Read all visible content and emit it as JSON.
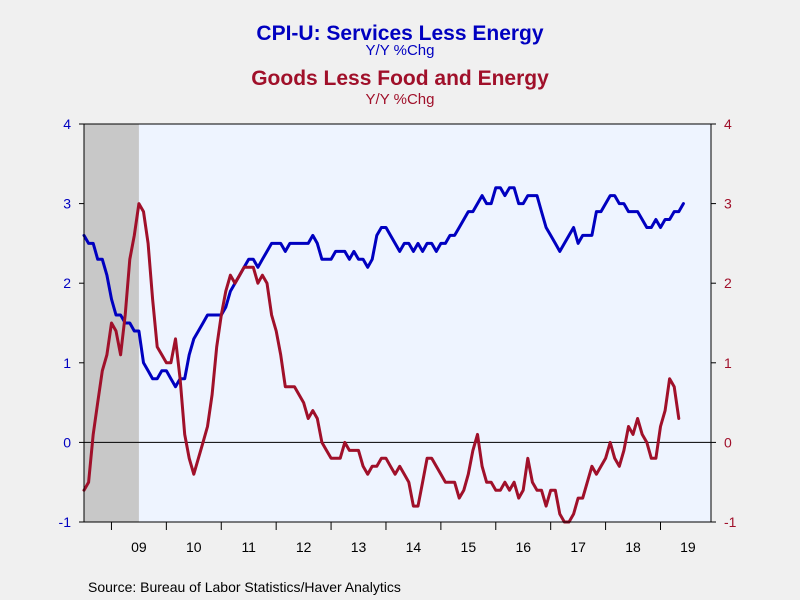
{
  "chart_data": {
    "type": "line",
    "titles": [
      {
        "text": "CPI-U: Services Less Energy",
        "color": "#0000c0"
      },
      {
        "text": "Y/Y %Chg",
        "color": "#0000c0"
      },
      {
        "text": "Goods Less Food and Energy",
        "color": "#a0102a"
      },
      {
        "text": "Y/Y %Chg",
        "color": "#a0102a"
      }
    ],
    "ylim": [
      -1,
      4
    ],
    "y_ticks": [
      -1,
      0,
      1,
      2,
      3,
      4
    ],
    "y_tick_labels": [
      "-1",
      "0",
      "1",
      "2",
      "3",
      "4"
    ],
    "xlim": [
      2008.5,
      2019.92
    ],
    "x_ticks": [
      {
        "label": "09",
        "year": 2009
      },
      {
        "label": "10",
        "year": 2010
      },
      {
        "label": "11",
        "year": 2011
      },
      {
        "label": "12",
        "year": 2012
      },
      {
        "label": "13",
        "year": 2013
      },
      {
        "label": "14",
        "year": 2014
      },
      {
        "label": "15",
        "year": 2015
      },
      {
        "label": "16",
        "year": 2016
      },
      {
        "label": "17",
        "year": 2017
      },
      {
        "label": "18",
        "year": 2018
      },
      {
        "label": "19",
        "year": 2019
      }
    ],
    "recession": {
      "start": "2008-07",
      "end": "2009-06"
    },
    "zero_line": true,
    "grid": false,
    "series": [
      {
        "axis": "left",
        "color": "#0000c0",
        "points": [
          [
            "2008-07",
            2.6
          ],
          [
            "2008-08",
            2.5
          ],
          [
            "2008-09",
            2.5
          ],
          [
            "2008-10",
            2.3
          ],
          [
            "2008-11",
            2.3
          ],
          [
            "2008-12",
            2.1
          ],
          [
            "2009-01",
            1.8
          ],
          [
            "2009-02",
            1.6
          ],
          [
            "2009-03",
            1.6
          ],
          [
            "2009-04",
            1.5
          ],
          [
            "2009-05",
            1.5
          ],
          [
            "2009-06",
            1.4
          ],
          [
            "2009-07",
            1.4
          ],
          [
            "2009-08",
            1.0
          ],
          [
            "2009-09",
            0.9
          ],
          [
            "2009-10",
            0.8
          ],
          [
            "2009-11",
            0.8
          ],
          [
            "2009-12",
            0.9
          ],
          [
            "2010-01",
            0.9
          ],
          [
            "2010-02",
            0.8
          ],
          [
            "2010-03",
            0.7
          ],
          [
            "2010-04",
            0.8
          ],
          [
            "2010-05",
            0.8
          ],
          [
            "2010-06",
            1.1
          ],
          [
            "2010-07",
            1.3
          ],
          [
            "2010-08",
            1.4
          ],
          [
            "2010-09",
            1.5
          ],
          [
            "2010-10",
            1.6
          ],
          [
            "2010-11",
            1.6
          ],
          [
            "2010-12",
            1.6
          ],
          [
            "2011-01",
            1.6
          ],
          [
            "2011-02",
            1.7
          ],
          [
            "2011-03",
            1.9
          ],
          [
            "2011-04",
            2.0
          ],
          [
            "2011-05",
            2.1
          ],
          [
            "2011-06",
            2.2
          ],
          [
            "2011-07",
            2.3
          ],
          [
            "2011-08",
            2.3
          ],
          [
            "2011-09",
            2.2
          ],
          [
            "2011-10",
            2.3
          ],
          [
            "2011-11",
            2.4
          ],
          [
            "2011-12",
            2.5
          ],
          [
            "2012-01",
            2.5
          ],
          [
            "2012-02",
            2.5
          ],
          [
            "2012-03",
            2.4
          ],
          [
            "2012-04",
            2.5
          ],
          [
            "2012-05",
            2.5
          ],
          [
            "2012-06",
            2.5
          ],
          [
            "2012-07",
            2.5
          ],
          [
            "2012-08",
            2.5
          ],
          [
            "2012-09",
            2.6
          ],
          [
            "2012-10",
            2.5
          ],
          [
            "2012-11",
            2.3
          ],
          [
            "2012-12",
            2.3
          ],
          [
            "2013-01",
            2.3
          ],
          [
            "2013-02",
            2.4
          ],
          [
            "2013-03",
            2.4
          ],
          [
            "2013-04",
            2.4
          ],
          [
            "2013-05",
            2.3
          ],
          [
            "2013-06",
            2.4
          ],
          [
            "2013-07",
            2.3
          ],
          [
            "2013-08",
            2.3
          ],
          [
            "2013-09",
            2.2
          ],
          [
            "2013-10",
            2.3
          ],
          [
            "2013-11",
            2.6
          ],
          [
            "2013-12",
            2.7
          ],
          [
            "2014-01",
            2.7
          ],
          [
            "2014-02",
            2.6
          ],
          [
            "2014-03",
            2.5
          ],
          [
            "2014-04",
            2.4
          ],
          [
            "2014-05",
            2.5
          ],
          [
            "2014-06",
            2.5
          ],
          [
            "2014-07",
            2.4
          ],
          [
            "2014-08",
            2.5
          ],
          [
            "2014-09",
            2.4
          ],
          [
            "2014-10",
            2.5
          ],
          [
            "2014-11",
            2.5
          ],
          [
            "2014-12",
            2.4
          ],
          [
            "2015-01",
            2.5
          ],
          [
            "2015-02",
            2.5
          ],
          [
            "2015-03",
            2.6
          ],
          [
            "2015-04",
            2.6
          ],
          [
            "2015-05",
            2.7
          ],
          [
            "2015-06",
            2.8
          ],
          [
            "2015-07",
            2.9
          ],
          [
            "2015-08",
            2.9
          ],
          [
            "2015-09",
            3.0
          ],
          [
            "2015-10",
            3.1
          ],
          [
            "2015-11",
            3.0
          ],
          [
            "2015-12",
            3.0
          ],
          [
            "2016-01",
            3.2
          ],
          [
            "2016-02",
            3.2
          ],
          [
            "2016-03",
            3.1
          ],
          [
            "2016-04",
            3.2
          ],
          [
            "2016-05",
            3.2
          ],
          [
            "2016-06",
            3.0
          ],
          [
            "2016-07",
            3.0
          ],
          [
            "2016-08",
            3.1
          ],
          [
            "2016-09",
            3.1
          ],
          [
            "2016-10",
            3.1
          ],
          [
            "2016-11",
            2.9
          ],
          [
            "2016-12",
            2.7
          ],
          [
            "2017-01",
            2.6
          ],
          [
            "2017-02",
            2.5
          ],
          [
            "2017-03",
            2.4
          ],
          [
            "2017-04",
            2.5
          ],
          [
            "2017-05",
            2.6
          ],
          [
            "2017-06",
            2.7
          ],
          [
            "2017-07",
            2.5
          ],
          [
            "2017-08",
            2.6
          ],
          [
            "2017-09",
            2.6
          ],
          [
            "2017-10",
            2.6
          ],
          [
            "2017-11",
            2.9
          ],
          [
            "2017-12",
            2.9
          ],
          [
            "2018-01",
            3.0
          ],
          [
            "2018-02",
            3.1
          ],
          [
            "2018-03",
            3.1
          ],
          [
            "2018-04",
            3.0
          ],
          [
            "2018-05",
            3.0
          ],
          [
            "2018-06",
            2.9
          ],
          [
            "2018-07",
            2.9
          ],
          [
            "2018-08",
            2.9
          ],
          [
            "2018-09",
            2.8
          ],
          [
            "2018-10",
            2.7
          ],
          [
            "2018-11",
            2.7
          ],
          [
            "2018-12",
            2.8
          ],
          [
            "2019-01",
            2.7
          ],
          [
            "2019-02",
            2.8
          ],
          [
            "2019-03",
            2.8
          ],
          [
            "2019-04",
            2.9
          ],
          [
            "2019-05",
            2.9
          ],
          [
            "2019-06",
            3.0
          ]
        ]
      },
      {
        "axis": "right",
        "color": "#a0102a",
        "points": [
          [
            "2008-07",
            -0.6
          ],
          [
            "2008-08",
            -0.5
          ],
          [
            "2008-09",
            0.1
          ],
          [
            "2008-10",
            0.5
          ],
          [
            "2008-11",
            0.9
          ],
          [
            "2008-12",
            1.1
          ],
          [
            "2009-01",
            1.5
          ],
          [
            "2009-02",
            1.4
          ],
          [
            "2009-03",
            1.1
          ],
          [
            "2009-04",
            1.6
          ],
          [
            "2009-05",
            2.3
          ],
          [
            "2009-06",
            2.6
          ],
          [
            "2009-07",
            3.0
          ],
          [
            "2009-08",
            2.9
          ],
          [
            "2009-09",
            2.5
          ],
          [
            "2009-10",
            1.8
          ],
          [
            "2009-11",
            1.2
          ],
          [
            "2009-12",
            1.1
          ],
          [
            "2010-01",
            1.0
          ],
          [
            "2010-02",
            1.0
          ],
          [
            "2010-03",
            1.3
          ],
          [
            "2010-04",
            0.8
          ],
          [
            "2010-05",
            0.1
          ],
          [
            "2010-06",
            -0.2
          ],
          [
            "2010-07",
            -0.4
          ],
          [
            "2010-08",
            -0.2
          ],
          [
            "2010-09",
            0.0
          ],
          [
            "2010-10",
            0.2
          ],
          [
            "2010-11",
            0.6
          ],
          [
            "2010-12",
            1.2
          ],
          [
            "2011-01",
            1.6
          ],
          [
            "2011-02",
            1.9
          ],
          [
            "2011-03",
            2.1
          ],
          [
            "2011-04",
            2.0
          ],
          [
            "2011-05",
            2.1
          ],
          [
            "2011-06",
            2.2
          ],
          [
            "2011-07",
            2.2
          ],
          [
            "2011-08",
            2.2
          ],
          [
            "2011-09",
            2.0
          ],
          [
            "2011-10",
            2.1
          ],
          [
            "2011-11",
            2.0
          ],
          [
            "2011-12",
            1.6
          ],
          [
            "2012-01",
            1.4
          ],
          [
            "2012-02",
            1.1
          ],
          [
            "2012-03",
            0.7
          ],
          [
            "2012-04",
            0.7
          ],
          [
            "2012-05",
            0.7
          ],
          [
            "2012-06",
            0.6
          ],
          [
            "2012-07",
            0.5
          ],
          [
            "2012-08",
            0.3
          ],
          [
            "2012-09",
            0.4
          ],
          [
            "2012-10",
            0.3
          ],
          [
            "2012-11",
            0.0
          ],
          [
            "2012-12",
            -0.1
          ],
          [
            "2013-01",
            -0.2
          ],
          [
            "2013-02",
            -0.2
          ],
          [
            "2013-03",
            -0.2
          ],
          [
            "2013-04",
            0.0
          ],
          [
            "2013-05",
            -0.1
          ],
          [
            "2013-06",
            -0.1
          ],
          [
            "2013-07",
            -0.1
          ],
          [
            "2013-08",
            -0.3
          ],
          [
            "2013-09",
            -0.4
          ],
          [
            "2013-10",
            -0.3
          ],
          [
            "2013-11",
            -0.3
          ],
          [
            "2013-12",
            -0.2
          ],
          [
            "2014-01",
            -0.2
          ],
          [
            "2014-02",
            -0.3
          ],
          [
            "2014-03",
            -0.4
          ],
          [
            "2014-04",
            -0.3
          ],
          [
            "2014-05",
            -0.4
          ],
          [
            "2014-06",
            -0.5
          ],
          [
            "2014-07",
            -0.8
          ],
          [
            "2014-08",
            -0.8
          ],
          [
            "2014-09",
            -0.5
          ],
          [
            "2014-10",
            -0.2
          ],
          [
            "2014-11",
            -0.2
          ],
          [
            "2014-12",
            -0.3
          ],
          [
            "2015-01",
            -0.4
          ],
          [
            "2015-02",
            -0.5
          ],
          [
            "2015-03",
            -0.5
          ],
          [
            "2015-04",
            -0.5
          ],
          [
            "2015-05",
            -0.7
          ],
          [
            "2015-06",
            -0.6
          ],
          [
            "2015-07",
            -0.4
          ],
          [
            "2015-08",
            -0.1
          ],
          [
            "2015-09",
            0.1
          ],
          [
            "2015-10",
            -0.3
          ],
          [
            "2015-11",
            -0.5
          ],
          [
            "2015-12",
            -0.5
          ],
          [
            "2016-01",
            -0.6
          ],
          [
            "2016-02",
            -0.6
          ],
          [
            "2016-03",
            -0.5
          ],
          [
            "2016-04",
            -0.6
          ],
          [
            "2016-05",
            -0.5
          ],
          [
            "2016-06",
            -0.7
          ],
          [
            "2016-07",
            -0.6
          ],
          [
            "2016-08",
            -0.2
          ],
          [
            "2016-09",
            -0.5
          ],
          [
            "2016-10",
            -0.6
          ],
          [
            "2016-11",
            -0.6
          ],
          [
            "2016-12",
            -0.8
          ],
          [
            "2017-01",
            -0.6
          ],
          [
            "2017-02",
            -0.6
          ],
          [
            "2017-03",
            -0.9
          ],
          [
            "2017-04",
            -1.0
          ],
          [
            "2017-05",
            -1.0
          ],
          [
            "2017-06",
            -0.9
          ],
          [
            "2017-07",
            -0.7
          ],
          [
            "2017-08",
            -0.7
          ],
          [
            "2017-09",
            -0.5
          ],
          [
            "2017-10",
            -0.3
          ],
          [
            "2017-11",
            -0.4
          ],
          [
            "2017-12",
            -0.3
          ],
          [
            "2018-01",
            -0.2
          ],
          [
            "2018-02",
            0.0
          ],
          [
            "2018-03",
            -0.2
          ],
          [
            "2018-04",
            -0.3
          ],
          [
            "2018-05",
            -0.1
          ],
          [
            "2018-06",
            0.2
          ],
          [
            "2018-07",
            0.1
          ],
          [
            "2018-08",
            0.3
          ],
          [
            "2018-09",
            0.1
          ],
          [
            "2018-10",
            0.0
          ],
          [
            "2018-11",
            -0.2
          ],
          [
            "2018-12",
            -0.2
          ],
          [
            "2019-01",
            0.2
          ],
          [
            "2019-02",
            0.4
          ],
          [
            "2019-03",
            0.8
          ],
          [
            "2019-04",
            0.7
          ],
          [
            "2019-05",
            0.3
          ]
        ]
      }
    ]
  },
  "source": "Source:  Bureau of Labor Statistics/Haver Analytics",
  "colors": {
    "background": "#f0f0f0",
    "plot_area": "#eef4ff",
    "recession": "#c8c8c8",
    "axis": "#000000"
  }
}
